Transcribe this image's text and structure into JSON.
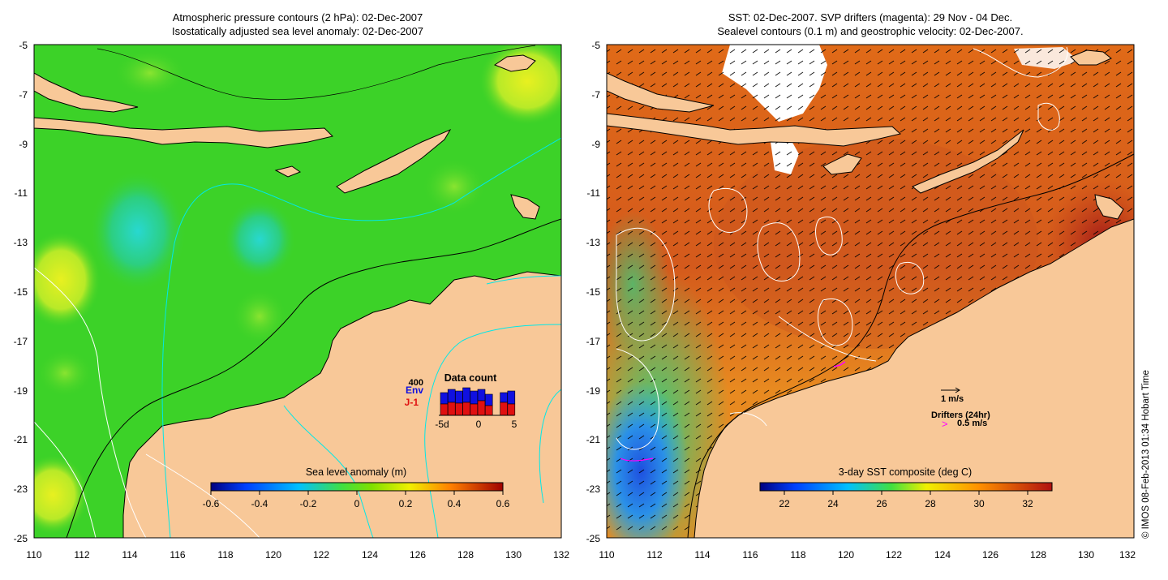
{
  "left_panel": {
    "title_line1": "Atmospheric pressure contours (2 hPa): 02-Dec-2007",
    "title_line2": "Isostatically adjusted sea level anomaly: 02-Dec-2007",
    "x_ticks": [
      "110",
      "112",
      "114",
      "116",
      "118",
      "120",
      "122",
      "124",
      "126",
      "128",
      "130",
      "132"
    ],
    "y_ticks": [
      "-5",
      "-7",
      "-9",
      "-11",
      "-13",
      "-15",
      "-17",
      "-19",
      "-21",
      "-23",
      "-25"
    ],
    "colorbar": {
      "title": "Sea level anomaly (m)",
      "ticks": [
        "-0.6",
        "-0.4",
        "-0.2",
        "0",
        "0.2",
        "0.4",
        "0.6"
      ],
      "range": [
        -0.6,
        0.6
      ]
    },
    "data_count": {
      "title": "Data count",
      "max_label": "400",
      "env_label": "Env",
      "j1_label": "J-1",
      "ticks": [
        "-5d",
        "0",
        "5"
      ],
      "env_color": "#1010e0",
      "j1_color": "#e01010"
    }
  },
  "right_panel": {
    "title_line1": "SST: 02-Dec-2007. SVP drifters (magenta): 29 Nov - 04 Dec.",
    "title_line2": "Sealevel contours (0.1 m) and geostrophic velocity: 02-Dec-2007.",
    "x_ticks": [
      "110",
      "112",
      "114",
      "116",
      "118",
      "120",
      "122",
      "124",
      "126",
      "128",
      "130",
      "132"
    ],
    "y_ticks": [
      "-5",
      "-7",
      "-9",
      "-11",
      "-13",
      "-15",
      "-17",
      "-19",
      "-21",
      "-23",
      "-25"
    ],
    "colorbar": {
      "title": "3-day SST composite (deg C)",
      "ticks": [
        "22",
        "24",
        "26",
        "28",
        "30",
        "32"
      ],
      "range": [
        21,
        33
      ]
    },
    "velocity_key": "1 m/s",
    "drifters_label": "Drifters (24hr)",
    "drifter_speed_label": "0.5 m/s",
    "drifter_color": "#ff00ff"
  },
  "credit": "© IMOS 08-Feb-2013 01:34 Hobart Time",
  "colors": {
    "land": "#f8c898",
    "slanom_base": "#3cd228",
    "sst_base": "#d2641e"
  }
}
